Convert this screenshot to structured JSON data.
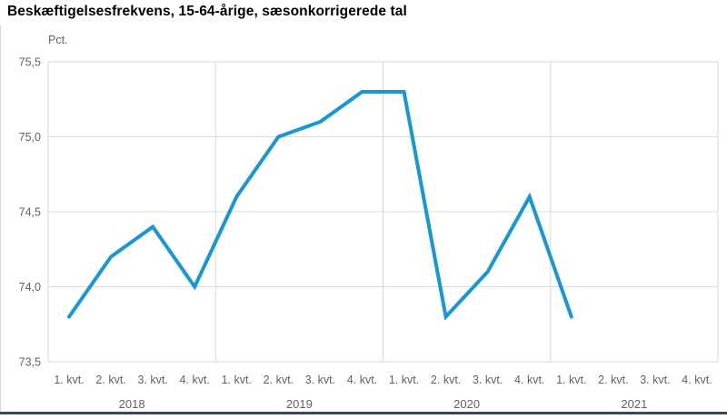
{
  "page": {
    "title": "Beskæftigelsesfrekvens, 15-64-årige, sæsonkorrigerede tal",
    "unit_label": "Pct."
  },
  "chart_data": {
    "type": "line",
    "title": "Beskæftigelsesfrekvens, 15-64-årige, sæsonkorrigerede tal",
    "ylabel": "Pct.",
    "xlabel": "",
    "ylim": [
      73.5,
      75.5
    ],
    "grid": true,
    "legend_position": "none",
    "y_ticks": [
      {
        "value": 75.5,
        "label": "75,5"
      },
      {
        "value": 75.0,
        "label": "75,0"
      },
      {
        "value": 74.5,
        "label": "74,5"
      },
      {
        "value": 74.0,
        "label": "74,0"
      },
      {
        "value": 73.5,
        "label": "73,5"
      }
    ],
    "quarter_labels": [
      "1. kvt.",
      "2. kvt.",
      "3. kvt.",
      "4. kvt."
    ],
    "year_labels": [
      "2018",
      "2019",
      "2020",
      "2021"
    ],
    "x_slots": 16,
    "series": [
      {
        "name": "Beskæftigelsesfrekvens, 15-64-årige",
        "x": [
          "2018K1",
          "2018K2",
          "2018K3",
          "2018K4",
          "2019K1",
          "2019K2",
          "2019K3",
          "2019K4",
          "2020K1",
          "2020K2",
          "2020K3",
          "2020K4",
          "2021K1"
        ],
        "values": [
          73.8,
          74.2,
          74.4,
          74.0,
          74.6,
          75.0,
          75.1,
          75.3,
          75.3,
          73.8,
          74.1,
          74.6,
          73.8
        ]
      }
    ]
  },
  "colors": {
    "line": "#1697d6",
    "grid": "#dcdcd5",
    "plot_border": "#d9d9d2",
    "axis_text": "#63635b",
    "title_text": "#000000",
    "bottom_rule": "#2b4d5c"
  }
}
